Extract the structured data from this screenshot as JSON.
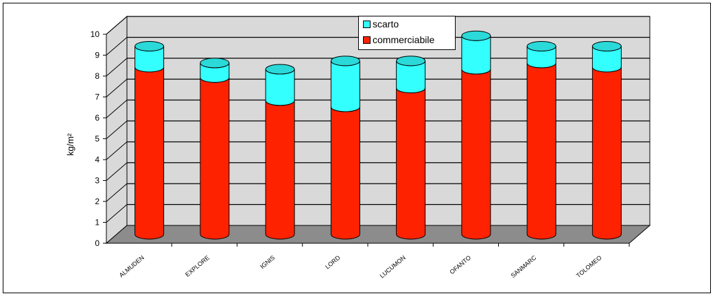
{
  "chart_data": {
    "type": "bar",
    "stacked": true,
    "three_d": true,
    "categories": [
      "ALMUDEN",
      "EXPLORE",
      "IGNIS",
      "LORD",
      "LUCUMON",
      "OFANTO",
      "SANMARC",
      "TOLOMEO"
    ],
    "series": [
      {
        "name": "commerciabile",
        "color": "#ff2200",
        "values": [
          8.0,
          7.5,
          6.4,
          6.1,
          7.0,
          7.9,
          8.2,
          8.0
        ]
      },
      {
        "name": "scarto",
        "color": "#33ffff",
        "values": [
          1.0,
          0.7,
          1.5,
          2.2,
          1.3,
          1.6,
          0.8,
          1.0
        ]
      }
    ],
    "ylabel": "kg/m²",
    "ylim": [
      0,
      10
    ],
    "yticks": [
      "0",
      "1",
      "2",
      "3",
      "4",
      "5",
      "6",
      "7",
      "8",
      "9",
      "10"
    ],
    "grid": true,
    "legend_position": "top-center",
    "colors": {
      "wall": "#d9d9d9",
      "floor": "#8c8c8c",
      "grid": "#000000"
    }
  }
}
